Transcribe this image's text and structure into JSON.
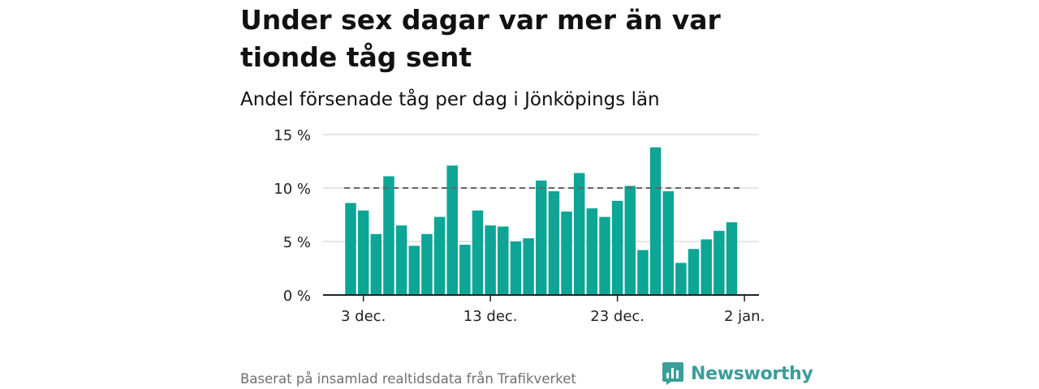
{
  "title": "Under sex dagar var mer än var tionde tåg sent",
  "subtitle": "Andel försenade tåg per dag i Jönköpings län",
  "source": "Baserat på insamlad realtidsdata från Trafikverket",
  "brand": {
    "name": "Newsworthy",
    "logo_icon": "bar-chart-speech-bubble-icon",
    "color": "#3a9e99"
  },
  "colors": {
    "bar": "#0ca596",
    "reference_line": "#666666",
    "grid": "#dddddd",
    "axis": "#222222"
  },
  "chart_data": {
    "type": "bar",
    "title": "Under sex dagar var mer än var tionde tåg sent",
    "subtitle": "Andel försenade tåg per dag i Jönköpings län",
    "xlabel": "",
    "ylabel": "",
    "unit": "%",
    "ylim": [
      0,
      15
    ],
    "yticks": [
      0,
      5,
      10,
      15
    ],
    "ytick_labels": [
      "0 %",
      "5 %",
      "10 %",
      "15 %"
    ],
    "xtick_labels": [
      "3 dec.",
      "13 dec.",
      "23 dec.",
      "2 jan."
    ],
    "xtick_dates": [
      "2020-12-03",
      "2020-12-13",
      "2020-12-23",
      "2021-01-02"
    ],
    "categories": [
      "2020-12-02",
      "2020-12-03",
      "2020-12-04",
      "2020-12-05",
      "2020-12-06",
      "2020-12-07",
      "2020-12-08",
      "2020-12-09",
      "2020-12-10",
      "2020-12-11",
      "2020-12-12",
      "2020-12-13",
      "2020-12-14",
      "2020-12-15",
      "2020-12-16",
      "2020-12-17",
      "2020-12-18",
      "2020-12-19",
      "2020-12-20",
      "2020-12-21",
      "2020-12-22",
      "2020-12-23",
      "2020-12-24",
      "2020-12-25",
      "2020-12-26",
      "2020-12-27",
      "2020-12-28",
      "2020-12-29",
      "2020-12-30",
      "2020-12-31",
      "2021-01-01"
    ],
    "values": [
      8.6,
      7.9,
      5.7,
      11.1,
      6.5,
      4.6,
      5.7,
      7.3,
      12.1,
      4.7,
      7.9,
      6.5,
      6.4,
      5.0,
      5.3,
      10.7,
      9.7,
      7.8,
      11.4,
      8.1,
      7.3,
      8.8,
      10.2,
      4.2,
      13.8,
      9.7,
      3.0,
      4.3,
      5.2,
      6.0,
      6.8
    ],
    "reference_line": {
      "value": 10,
      "style": "dashed"
    },
    "grid": true,
    "legend": "none"
  }
}
